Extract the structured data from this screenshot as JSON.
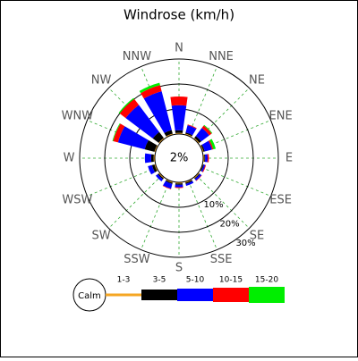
{
  "chart_data": {
    "type": "windrose",
    "title": "Windrose (km/h)",
    "directions": [
      "N",
      "NNE",
      "NE",
      "ENE",
      "E",
      "ESE",
      "SE",
      "SSE",
      "S",
      "SSW",
      "SW",
      "WSW",
      "W",
      "WNW",
      "NW",
      "NNW"
    ],
    "series": [
      {
        "name": "1-3",
        "color": "#f5a623",
        "values": [
          0.5,
          0.5,
          0.5,
          0.5,
          0.5,
          0.3,
          0.5,
          0.5,
          0.5,
          0.5,
          0.5,
          0.5,
          0.5,
          0.5,
          0.5,
          0.5
        ]
      },
      {
        "name": "3-5",
        "color": "#000000",
        "values": [
          1.0,
          0.5,
          1.0,
          0.5,
          0.3,
          0.3,
          0.3,
          0.5,
          0.5,
          0.5,
          0.5,
          1.0,
          1.0,
          4.0,
          3.0,
          1.5
        ]
      },
      {
        "name": "5-10",
        "color": "#0000ff",
        "values": [
          10,
          3,
          4,
          3,
          1,
          0.6,
          0.8,
          0.8,
          1,
          2,
          1,
          1.7,
          2.5,
          11,
          13.5,
          16
        ]
      },
      {
        "name": "10-15",
        "color": "#ff0000",
        "values": [
          3.5,
          0.3,
          1.2,
          0.5,
          0.5,
          0.3,
          0.2,
          0,
          0.3,
          0.2,
          0,
          0,
          0,
          2,
          3,
          2.5
        ]
      },
      {
        "name": "15-20",
        "color": "#00ee00",
        "values": [
          0,
          0,
          0.3,
          1,
          0,
          0,
          0,
          0,
          0,
          0,
          0,
          0,
          0,
          0.3,
          0.5,
          1
        ]
      }
    ],
    "calm_name": "Calm",
    "calm_value": 2,
    "calm_value_label": "2%",
    "rlim": [
      0,
      30
    ],
    "rticks": [
      {
        "value": 10,
        "label": "10%"
      },
      {
        "value": 20,
        "label": "20%"
      },
      {
        "value": 30,
        "label": "30%"
      }
    ],
    "grid": true
  }
}
